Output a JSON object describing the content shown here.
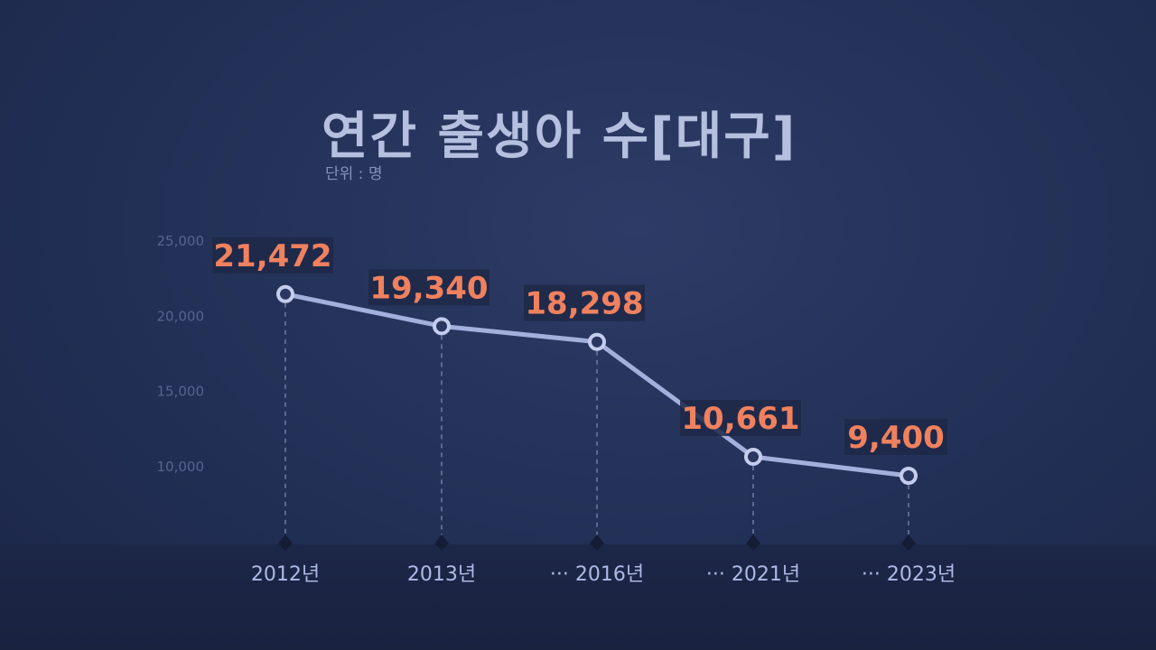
{
  "header": {
    "title": "연간 출생아 수[대구]",
    "unit": "단위 : 명"
  },
  "colors": {
    "line": "#a4b0dc",
    "value_label": "#f0815f",
    "value_box": "#1e2848",
    "axis_text": "#aeb9e6",
    "tick_text": "#56648d"
  },
  "chart_data": {
    "type": "line",
    "title": "연간 출생아 수[대구]",
    "subtitle": "단위 : 명",
    "xlabel": "",
    "ylabel": "",
    "x": [
      "2012년",
      "2013년",
      "2016년",
      "2021년",
      "2023년"
    ],
    "x_prefix": [
      "",
      "",
      "···",
      "···",
      "···"
    ],
    "y_ticks": [
      "25,000",
      "20,000",
      "15,000",
      "10,000"
    ],
    "y_tick_values": [
      25000,
      20000,
      15000,
      10000
    ],
    "values": [
      21472,
      19340,
      18298,
      10661,
      9400
    ],
    "value_labels": [
      "21,472",
      "19,340",
      "18,298",
      "10,661",
      "9,400"
    ],
    "ylim": [
      5000,
      25000
    ],
    "grid": false,
    "legend": "none"
  }
}
